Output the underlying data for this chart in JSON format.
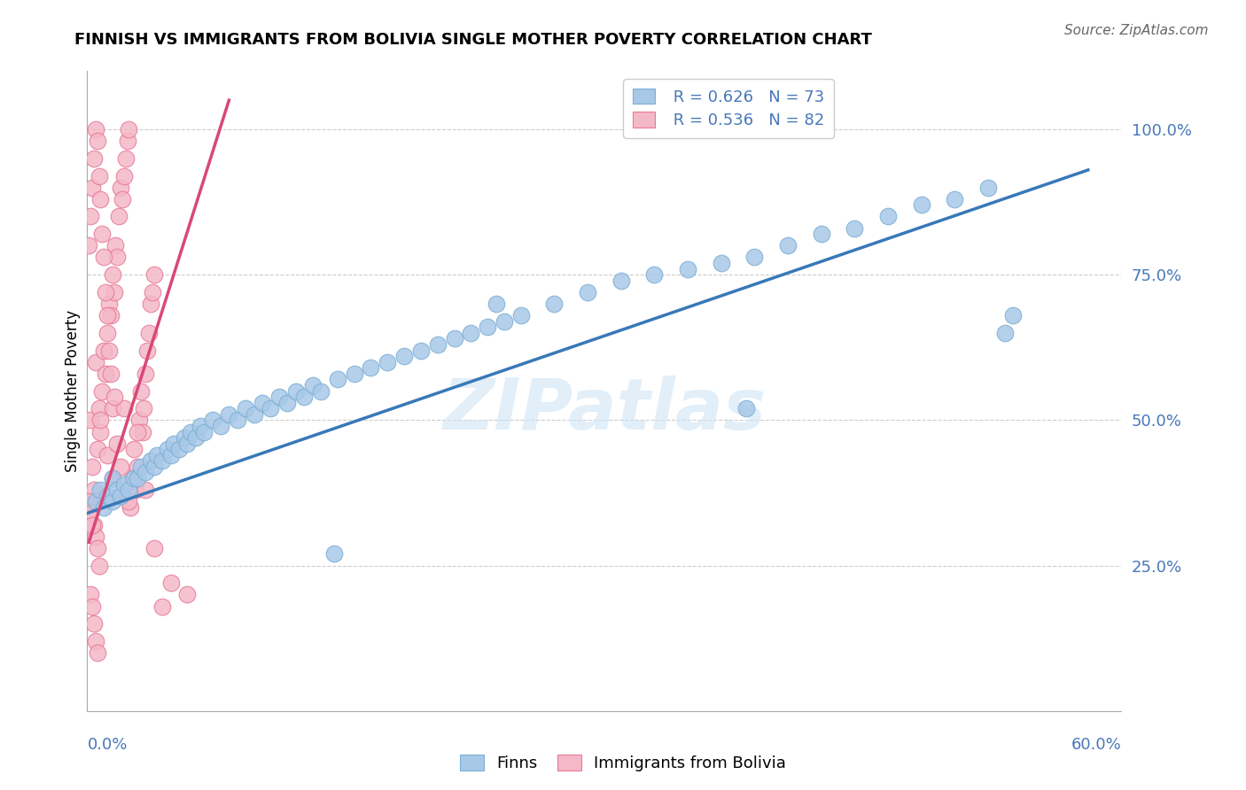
{
  "title": "FINNISH VS IMMIGRANTS FROM BOLIVIA SINGLE MOTHER POVERTY CORRELATION CHART",
  "source": "Source: ZipAtlas.com",
  "ylabel": "Single Mother Poverty",
  "legend_blue_R": "R = 0.626",
  "legend_blue_N": "N = 73",
  "legend_pink_R": "R = 0.536",
  "legend_pink_N": "N = 82",
  "blue_color": "#a8c8e8",
  "blue_edge_color": "#7bafd4",
  "pink_color": "#f4b8c8",
  "pink_edge_color": "#e87898",
  "blue_line_color": "#3878b8",
  "pink_line_color": "#d84878",
  "text_color": "#4878b8",
  "watermark": "ZIPatlas",
  "xlim": [
    0.0,
    0.62
  ],
  "ylim": [
    0.0,
    1.1
  ],
  "blue_scatter_x": [
    0.005,
    0.008,
    0.01,
    0.012,
    0.015,
    0.015,
    0.018,
    0.02,
    0.022,
    0.025,
    0.028,
    0.03,
    0.032,
    0.035,
    0.038,
    0.04,
    0.042,
    0.045,
    0.048,
    0.05,
    0.052,
    0.055,
    0.058,
    0.06,
    0.062,
    0.065,
    0.068,
    0.07,
    0.075,
    0.08,
    0.085,
    0.09,
    0.095,
    0.1,
    0.105,
    0.11,
    0.115,
    0.12,
    0.125,
    0.13,
    0.135,
    0.14,
    0.15,
    0.16,
    0.17,
    0.18,
    0.19,
    0.2,
    0.21,
    0.22,
    0.23,
    0.24,
    0.25,
    0.26,
    0.28,
    0.3,
    0.32,
    0.34,
    0.36,
    0.38,
    0.4,
    0.42,
    0.44,
    0.46,
    0.48,
    0.5,
    0.52,
    0.54,
    0.55,
    0.555,
    0.148,
    0.245,
    0.395
  ],
  "blue_scatter_y": [
    0.36,
    0.38,
    0.35,
    0.37,
    0.36,
    0.4,
    0.38,
    0.37,
    0.39,
    0.38,
    0.4,
    0.4,
    0.42,
    0.41,
    0.43,
    0.42,
    0.44,
    0.43,
    0.45,
    0.44,
    0.46,
    0.45,
    0.47,
    0.46,
    0.48,
    0.47,
    0.49,
    0.48,
    0.5,
    0.49,
    0.51,
    0.5,
    0.52,
    0.51,
    0.53,
    0.52,
    0.54,
    0.53,
    0.55,
    0.54,
    0.56,
    0.55,
    0.57,
    0.58,
    0.59,
    0.6,
    0.61,
    0.62,
    0.63,
    0.64,
    0.65,
    0.66,
    0.67,
    0.68,
    0.7,
    0.72,
    0.74,
    0.75,
    0.76,
    0.77,
    0.78,
    0.8,
    0.82,
    0.83,
    0.85,
    0.87,
    0.88,
    0.9,
    0.65,
    0.68,
    0.27,
    0.7,
    0.52
  ],
  "pink_scatter_x": [
    0.001,
    0.002,
    0.003,
    0.004,
    0.005,
    0.006,
    0.007,
    0.008,
    0.009,
    0.01,
    0.011,
    0.012,
    0.013,
    0.014,
    0.015,
    0.016,
    0.017,
    0.018,
    0.019,
    0.02,
    0.021,
    0.022,
    0.023,
    0.024,
    0.025,
    0.026,
    0.027,
    0.028,
    0.029,
    0.03,
    0.031,
    0.032,
    0.033,
    0.034,
    0.035,
    0.036,
    0.037,
    0.038,
    0.039,
    0.04,
    0.001,
    0.002,
    0.003,
    0.004,
    0.005,
    0.006,
    0.007,
    0.008,
    0.009,
    0.01,
    0.011,
    0.012,
    0.013,
    0.014,
    0.015,
    0.003,
    0.004,
    0.005,
    0.006,
    0.007,
    0.002,
    0.003,
    0.004,
    0.005,
    0.006,
    0.001,
    0.002,
    0.003,
    0.05,
    0.06,
    0.025,
    0.035,
    0.015,
    0.02,
    0.012,
    0.018,
    0.03,
    0.008,
    0.022,
    0.016,
    0.04,
    0.045
  ],
  "pink_scatter_y": [
    0.36,
    0.5,
    0.42,
    0.38,
    0.6,
    0.45,
    0.52,
    0.48,
    0.55,
    0.62,
    0.58,
    0.65,
    0.7,
    0.68,
    0.75,
    0.72,
    0.8,
    0.78,
    0.85,
    0.9,
    0.88,
    0.92,
    0.95,
    0.98,
    1.0,
    0.35,
    0.4,
    0.45,
    0.38,
    0.42,
    0.5,
    0.55,
    0.48,
    0.52,
    0.58,
    0.62,
    0.65,
    0.7,
    0.72,
    0.75,
    0.8,
    0.85,
    0.9,
    0.95,
    1.0,
    0.98,
    0.92,
    0.88,
    0.82,
    0.78,
    0.72,
    0.68,
    0.62,
    0.58,
    0.52,
    0.35,
    0.32,
    0.3,
    0.28,
    0.25,
    0.2,
    0.18,
    0.15,
    0.12,
    0.1,
    0.36,
    0.34,
    0.32,
    0.22,
    0.2,
    0.36,
    0.38,
    0.4,
    0.42,
    0.44,
    0.46,
    0.48,
    0.5,
    0.52,
    0.54,
    0.28,
    0.18
  ],
  "blue_line_x": [
    0.0,
    0.6
  ],
  "blue_line_y": [
    0.34,
    0.93
  ],
  "pink_line_x": [
    0.001,
    0.085
  ],
  "pink_line_y": [
    0.29,
    1.05
  ]
}
